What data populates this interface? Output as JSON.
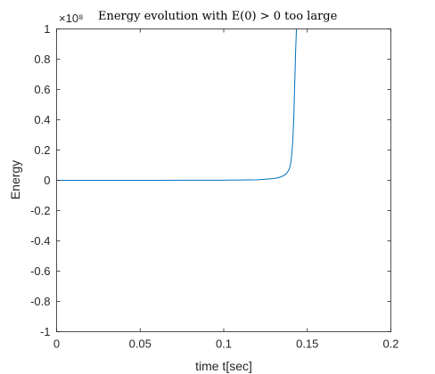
{
  "chart_data": {
    "type": "line",
    "title": "Energy evolution with E(0) > 0 too large",
    "xlabel": "time t[sec]",
    "ylabel": "Energy",
    "y_exponent_label": "×10⁸",
    "y_scale_factor": 100000000,
    "xlim": [
      0,
      0.2
    ],
    "ylim": [
      -1,
      1
    ],
    "x_ticks": [
      0,
      0.05,
      0.1,
      0.15,
      0.2
    ],
    "x_tick_labels": [
      "0",
      "0.05",
      "0.1",
      "0.15",
      "0.2"
    ],
    "y_ticks": [
      -1,
      -0.8,
      -0.6,
      -0.4,
      -0.2,
      0,
      0.2,
      0.4,
      0.6,
      0.8,
      1
    ],
    "y_tick_labels": [
      "-1",
      "-0.8",
      "-0.6",
      "-0.4",
      "-0.2",
      "0",
      "0.2",
      "0.4",
      "0.6",
      "0.8",
      "1"
    ],
    "grid": false,
    "line_color": "#0072BD",
    "series": [
      {
        "x": [
          0,
          0.02,
          0.04,
          0.06,
          0.08,
          0.1,
          0.11,
          0.12,
          0.125,
          0.13,
          0.132,
          0.134,
          0.136,
          0.137,
          0.138,
          0.139,
          0.1395,
          0.14,
          0.1405,
          0.141,
          0.1415,
          0.142,
          0.1425,
          0.143,
          0.1435
        ],
        "y": [
          0,
          0,
          0,
          0,
          0.0005,
          0.001,
          0.002,
          0.004,
          0.007,
          0.012,
          0.016,
          0.022,
          0.032,
          0.04,
          0.052,
          0.07,
          0.085,
          0.11,
          0.15,
          0.21,
          0.3,
          0.45,
          0.65,
          0.85,
          1.0
        ]
      }
    ]
  }
}
